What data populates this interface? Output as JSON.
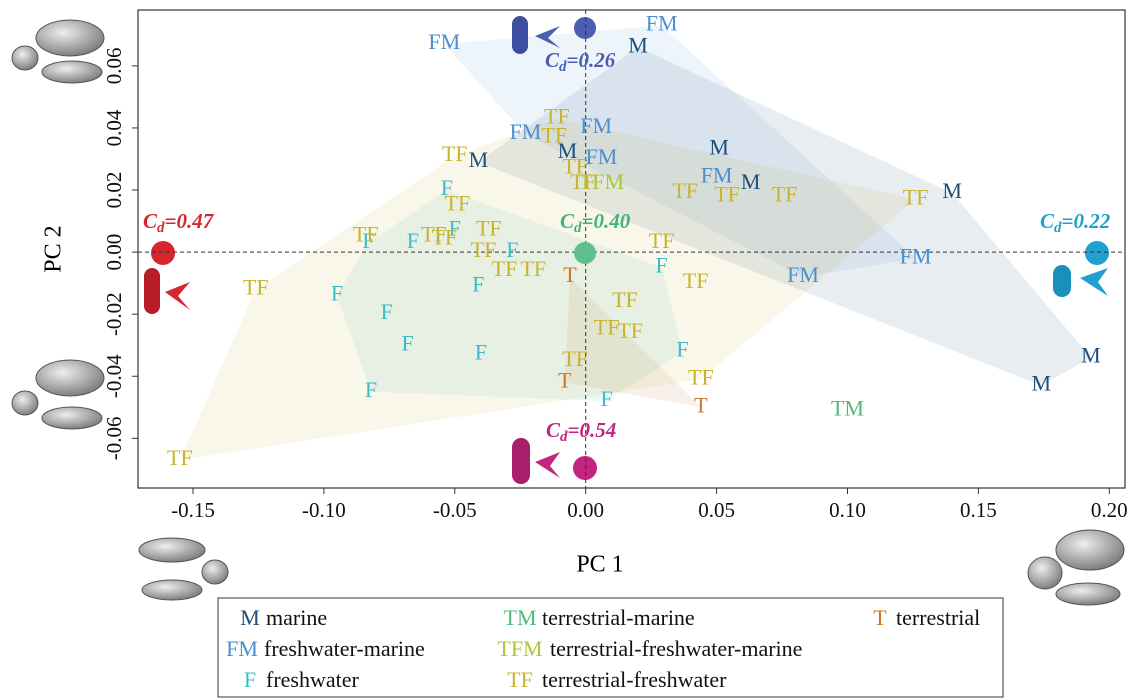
{
  "chart_data": {
    "type": "scatter",
    "x_label": "PC  1",
    "y_label": "PC  2",
    "xlim": [
      -0.171,
      0.206
    ],
    "ylim": [
      -0.076,
      0.078
    ],
    "xticks": [
      {
        "value": -0.15,
        "label": "-0.15"
      },
      {
        "value": -0.1,
        "label": "-0.10"
      },
      {
        "value": -0.05,
        "label": "-0.05"
      },
      {
        "value": 0,
        "label": "0.00"
      },
      {
        "value": 0.05,
        "label": "0.05"
      },
      {
        "value": 0.1,
        "label": "0.10"
      },
      {
        "value": 0.15,
        "label": "0.15"
      },
      {
        "value": 0.2,
        "label": "0.20"
      }
    ],
    "yticks": [
      {
        "value": -0.06,
        "label": "-0.06"
      },
      {
        "value": -0.04,
        "label": "-0.04"
      },
      {
        "value": -0.02,
        "label": "-0.02"
      },
      {
        "value": 0,
        "label": "0.00"
      },
      {
        "value": 0.02,
        "label": "0.02"
      },
      {
        "value": 0.04,
        "label": "0.04"
      },
      {
        "value": 0.06,
        "label": "0.06"
      }
    ],
    "series": [
      {
        "name": "marine",
        "marker": "M",
        "color": "#1d4e7c",
        "x": [
          0.02,
          -0.041,
          -0.007,
          0.051,
          0.063,
          0.14,
          0.193,
          0.174
        ],
        "values": [
          0.066,
          0.029,
          0.032,
          0.033,
          0.022,
          0.019,
          -0.034,
          -0.043
        ]
      },
      {
        "name": "freshwater-marine",
        "marker": "FM",
        "color": "#4a8fd0",
        "x": [
          -0.054,
          0.029,
          -0.023,
          0.004,
          0.006,
          0.05,
          0.083,
          0.126
        ],
        "values": [
          0.067,
          0.073,
          0.038,
          0.04,
          0.03,
          0.024,
          -0.008,
          -0.002
        ]
      },
      {
        "name": "freshwater",
        "marker": "F",
        "color": "#3bbdc8",
        "x": [
          -0.053,
          -0.05,
          -0.083,
          -0.066,
          -0.028,
          -0.095,
          -0.076,
          -0.041,
          -0.068,
          -0.04,
          -0.082,
          0.029,
          0.037,
          0.008
        ],
        "values": [
          0.02,
          0.007,
          0.003,
          0.003,
          0.0,
          -0.014,
          -0.02,
          -0.011,
          -0.03,
          -0.033,
          -0.045,
          -0.005,
          -0.032,
          -0.048
        ]
      },
      {
        "name": "terrestrial-marine",
        "marker": "TM",
        "color": "#4dbb7a",
        "x": [
          0.1
        ],
        "values": [
          -0.051
        ]
      },
      {
        "name": "terrestrial-freshwater-marine",
        "marker": "TFM",
        "color": "#a8c83a",
        "x": [
          0.006
        ],
        "values": [
          0.022
        ]
      },
      {
        "name": "terrestrial",
        "marker": "T",
        "color": "#c9782a",
        "x": [
          -0.006,
          -0.008,
          0.044
        ],
        "values": [
          -0.008,
          -0.042,
          -0.05
        ]
      },
      {
        "name": "terrestrial-freshwater",
        "marker": "TF",
        "color": "#c8b42c",
        "x": [
          -0.05,
          -0.049,
          -0.011,
          -0.012,
          -0.004,
          -0.001,
          0.038,
          0.054,
          0.076,
          0.126,
          -0.084,
          -0.058,
          -0.054,
          -0.037,
          -0.039,
          0.029,
          -0.031,
          -0.02,
          -0.126,
          0.042,
          0.015,
          0.008,
          0.017,
          -0.004,
          0.044,
          -0.155
        ],
        "values": [
          0.031,
          0.015,
          0.043,
          0.037,
          0.027,
          0.022,
          0.019,
          0.018,
          0.018,
          0.017,
          0.005,
          0.005,
          0.004,
          0.007,
          0.0,
          0.003,
          -0.006,
          -0.006,
          -0.012,
          -0.01,
          -0.016,
          -0.025,
          -0.026,
          -0.035,
          -0.041,
          -0.067
        ]
      }
    ],
    "annotations": [
      {
        "symbol": "C",
        "subscript": "d",
        "text": "=0.26",
        "color": "#4a5fb0"
      },
      {
        "symbol": "C",
        "subscript": "d",
        "text": "=0.47",
        "color": "#d8262e"
      },
      {
        "symbol": "C",
        "subscript": "d",
        "text": "=0.40",
        "color": "#3fb37a"
      },
      {
        "symbol": "C",
        "subscript": "d",
        "text": "=0.22",
        "color": "#1fa0cf"
      },
      {
        "symbol": "C",
        "subscript": "d",
        "text": "=0.54",
        "color": "#c2247f"
      }
    ]
  }
}
